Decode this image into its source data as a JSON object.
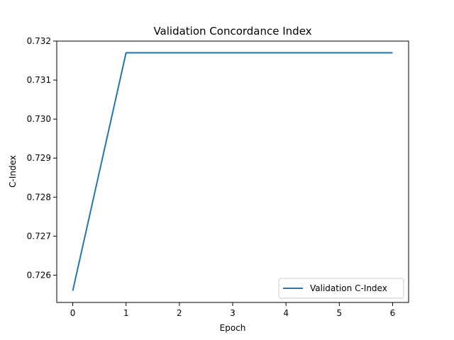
{
  "chart_data": {
    "type": "line",
    "title": "Validation Concordance Index",
    "xlabel": "Epoch",
    "ylabel": "C-Index",
    "x": [
      0,
      1,
      2,
      3,
      4,
      5,
      6
    ],
    "series": [
      {
        "name": "Validation C-Index",
        "color": "#1f77b4",
        "values": [
          0.7256,
          0.7317,
          0.7317,
          0.7317,
          0.7317,
          0.7317,
          0.7317
        ]
      }
    ],
    "xlim": [
      -0.3,
      6.3
    ],
    "ylim": [
      0.7253,
      0.732
    ],
    "xticks": [
      0,
      1,
      2,
      3,
      4,
      5,
      6
    ],
    "yticks": [
      0.726,
      0.727,
      0.728,
      0.729,
      0.73,
      0.731,
      0.732
    ],
    "xtick_labels": [
      "0",
      "1",
      "2",
      "3",
      "4",
      "5",
      "6"
    ],
    "ytick_labels": [
      "0.726",
      "0.727",
      "0.728",
      "0.729",
      "0.730",
      "0.731",
      "0.732"
    ],
    "grid": false,
    "legend_position": "lower-right"
  }
}
